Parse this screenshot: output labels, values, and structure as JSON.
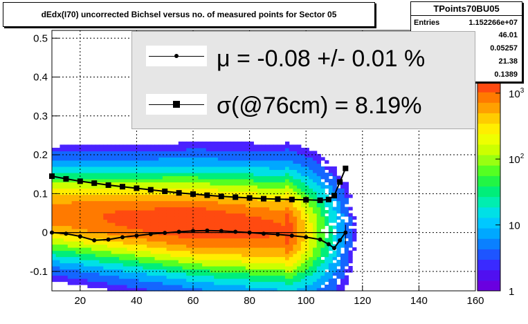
{
  "title": "dEdx(I70) uncorrected Bichsel versus no. of measured points for Sector 05",
  "stats": {
    "name": "TPoints70BU05",
    "rows": [
      {
        "key": "Entries",
        "value": "1.152266e+07"
      },
      {
        "key": "",
        "value": "46.01"
      },
      {
        "key": "",
        "value": "0.05257"
      },
      {
        "key": "",
        "value": "21.38"
      },
      {
        "key": "",
        "value": "0.1389"
      }
    ]
  },
  "legend": {
    "mu_text": "μ  = -0.08 +/-  0.01 %",
    "sigma_text": "σ(@76cm) =  8.19%"
  },
  "colorbar": {
    "labels": [
      "1",
      "10",
      "10²",
      "10³"
    ]
  },
  "chart_data": {
    "type": "heatmap",
    "title": "dEdx(I70) uncorrected Bichsel versus no. of measured points for Sector 05",
    "xlabel": "",
    "ylabel": "",
    "xlim": [
      10,
      160
    ],
    "ylim": [
      -0.15,
      0.52
    ],
    "x_ticks": [
      20,
      40,
      60,
      80,
      100,
      120,
      140,
      160
    ],
    "y_ticks": [
      -0.1,
      0,
      0.1,
      0.2,
      0.3,
      0.4,
      0.5
    ],
    "y_tick_labels": [
      "-0.1",
      "0",
      "0.1",
      "0.2",
      "0.3",
      "0.4",
      "0.5"
    ],
    "grid": true,
    "z_scale": "log",
    "zlim": [
      1,
      1500
    ],
    "sigma_profile": {
      "x": [
        10,
        15,
        20,
        25,
        30,
        35,
        40,
        45,
        50,
        55,
        60,
        65,
        70,
        75,
        80,
        85,
        90,
        95,
        100,
        105,
        108,
        110,
        112,
        114
      ],
      "y": [
        0.145,
        0.138,
        0.132,
        0.127,
        0.122,
        0.118,
        0.114,
        0.11,
        0.106,
        0.102,
        0.099,
        0.096,
        0.093,
        0.091,
        0.089,
        0.087,
        0.086,
        0.085,
        0.084,
        0.083,
        0.085,
        0.095,
        0.13,
        0.165
      ]
    },
    "mu_profile": {
      "x": [
        10,
        15,
        20,
        25,
        30,
        35,
        40,
        45,
        50,
        55,
        60,
        65,
        70,
        75,
        80,
        85,
        90,
        95,
        100,
        105,
        108,
        110,
        112,
        114
      ],
      "y": [
        0.0,
        -0.003,
        -0.01,
        -0.02,
        -0.018,
        -0.012,
        -0.008,
        -0.004,
        -0.001,
        0.002,
        0.004,
        0.005,
        0.004,
        0.002,
        0.0,
        -0.003,
        -0.005,
        -0.008,
        -0.012,
        -0.018,
        -0.03,
        -0.04,
        -0.02,
        0.0
      ]
    }
  }
}
